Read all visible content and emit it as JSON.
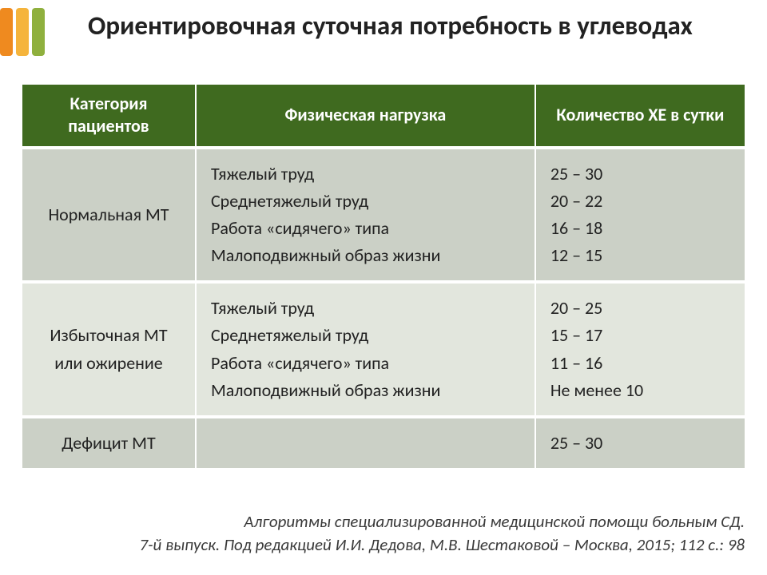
{
  "logo": {
    "colors": [
      "#ef8a1f",
      "#f5b43c",
      "#8fb03e"
    ]
  },
  "title": "Ориентировочная суточная потребность в углеводах",
  "table": {
    "header_bg": "#3f6a1f",
    "header_fg": "#ffffff",
    "row_bg_odd": "#cbd0c6",
    "row_bg_even": "#e2e6dd",
    "columns": [
      "Категория пациентов",
      "Физическая нагрузка",
      "Количество ХЕ в сутки"
    ],
    "rows": [
      {
        "category": "Нормальная МТ",
        "loads": [
          "Тяжелый труд",
          "Среднетяжелый труд",
          "Работа «сидячего» типа",
          "Малоподвижный образ жизни"
        ],
        "values": [
          "25 – 30",
          "20 – 22",
          "16 – 18",
          "12 – 15"
        ]
      },
      {
        "category": "Избыточная МТ или ожирение",
        "loads": [
          "Тяжелый труд",
          "Среднетяжелый труд",
          "Работа «сидячего» типа",
          "Малоподвижный образ жизни"
        ],
        "values": [
          "20 – 25",
          "15 – 17",
          "11 – 16",
          "Не менее 10"
        ]
      },
      {
        "category": "Дефицит МТ",
        "loads": [],
        "values": [
          "25 – 30"
        ]
      }
    ]
  },
  "citation": {
    "line1": "Алгоритмы специализированной медицинской помощи больным СД.",
    "line2": "7-й выпуск. Под редакцией И.И. Дедова, М.В. Шестаковой – Москва, 2015; 112 с.: 98"
  }
}
